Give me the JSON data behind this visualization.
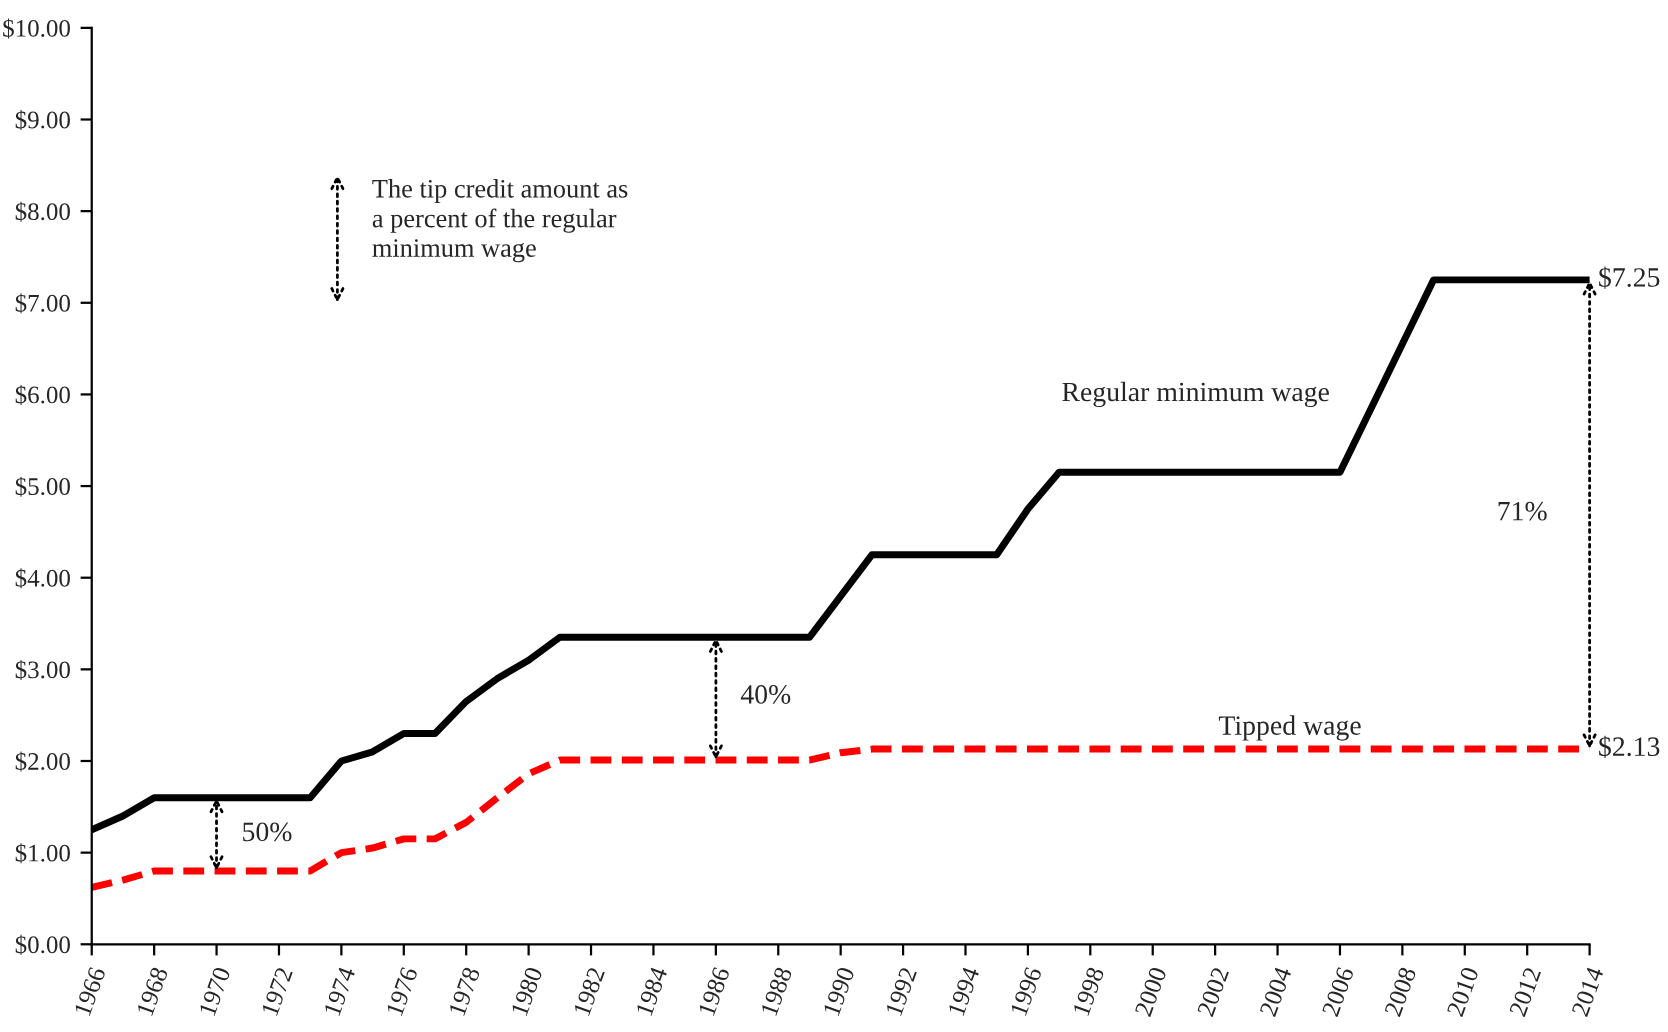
{
  "chart_data": {
    "type": "line",
    "x": [
      1966,
      1967,
      1968,
      1969,
      1970,
      1971,
      1972,
      1973,
      1974,
      1975,
      1976,
      1977,
      1978,
      1979,
      1980,
      1981,
      1982,
      1983,
      1984,
      1985,
      1986,
      1987,
      1988,
      1989,
      1990,
      1991,
      1992,
      1993,
      1994,
      1995,
      1996,
      1997,
      1998,
      1999,
      2000,
      2001,
      2002,
      2003,
      2004,
      2005,
      2006,
      2007,
      2008,
      2009,
      2010,
      2011,
      2012,
      2013,
      2014
    ],
    "series": [
      {
        "name": "Regular minimum wage",
        "color": "#000000",
        "line_style": "solid",
        "values": [
          1.25,
          1.4,
          1.6,
          1.6,
          1.6,
          1.6,
          1.6,
          1.6,
          2.0,
          2.1,
          2.3,
          2.3,
          2.65,
          2.9,
          3.1,
          3.35,
          3.35,
          3.35,
          3.35,
          3.35,
          3.35,
          3.35,
          3.35,
          3.35,
          3.8,
          4.25,
          4.25,
          4.25,
          4.25,
          4.25,
          4.75,
          5.15,
          5.15,
          5.15,
          5.15,
          5.15,
          5.15,
          5.15,
          5.15,
          5.15,
          5.15,
          5.85,
          6.55,
          7.25,
          7.25,
          7.25,
          7.25,
          7.25,
          7.25
        ]
      },
      {
        "name": "Tipped wage",
        "color": "#ff0000",
        "line_style": "dashed",
        "values": [
          0.62,
          0.7,
          0.8,
          0.8,
          0.8,
          0.8,
          0.8,
          0.8,
          1.0,
          1.05,
          1.15,
          1.15,
          1.33,
          1.6,
          1.86,
          2.01,
          2.01,
          2.01,
          2.01,
          2.01,
          2.01,
          2.01,
          2.01,
          2.01,
          2.09,
          2.13,
          2.13,
          2.13,
          2.13,
          2.13,
          2.13,
          2.13,
          2.13,
          2.13,
          2.13,
          2.13,
          2.13,
          2.13,
          2.13,
          2.13,
          2.13,
          2.13,
          2.13,
          2.13,
          2.13,
          2.13,
          2.13,
          2.13,
          2.13
        ]
      }
    ],
    "xlim": [
      1966,
      2014
    ],
    "xticks": [
      1966,
      1968,
      1970,
      1972,
      1974,
      1976,
      1978,
      1980,
      1982,
      1984,
      1986,
      1988,
      1990,
      1992,
      1994,
      1996,
      1998,
      2000,
      2002,
      2004,
      2006,
      2008,
      2010,
      2012,
      2014
    ],
    "ylim": [
      0,
      10
    ],
    "yticks": [
      {
        "value": 0,
        "label": "$0.00"
      },
      {
        "value": 1,
        "label": "$1.00"
      },
      {
        "value": 2,
        "label": "$2.00"
      },
      {
        "value": 3,
        "label": "$3.00"
      },
      {
        "value": 4,
        "label": "$4.00"
      },
      {
        "value": 5,
        "label": "$5.00"
      },
      {
        "value": 6,
        "label": "$6.00"
      },
      {
        "value": 7,
        "label": "$7.00"
      },
      {
        "value": 8,
        "label": "$8.00"
      },
      {
        "value": 9,
        "label": "$9.00"
      },
      {
        "value": 10,
        "label": "$10.00"
      }
    ],
    "grid": false,
    "legend": false,
    "annotations": [
      "The tip credit amount as\na percent of the regular\nminimum wage",
      "50%",
      "40%",
      "71%",
      {
        "text": "$7.25",
        "x": 2014,
        "y": 7.25
      },
      {
        "text": "$2.13",
        "x": 2014,
        "y": 2.13
      }
    ]
  }
}
